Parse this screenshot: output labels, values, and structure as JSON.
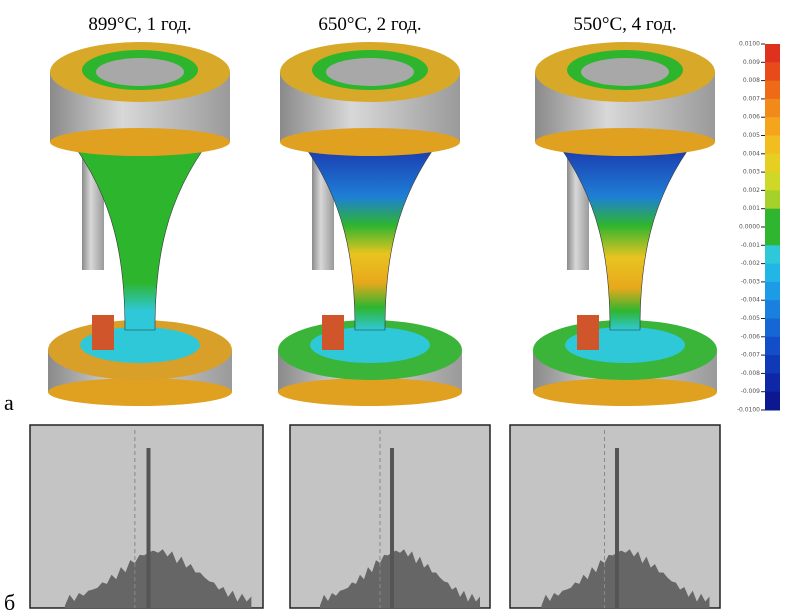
{
  "panel_labels": [
    "а",
    "б"
  ],
  "models": [
    {
      "title": "899°C, 1 год."
    },
    {
      "title": "650°C, 2 год."
    },
    {
      "title": "550°C, 4 год."
    }
  ],
  "colorbar": {
    "ticks": [
      {
        "value": 0.01,
        "label": "0.0100"
      },
      0.009,
      0.008,
      0.007,
      0.006,
      0.005,
      0.004,
      0.003,
      0.002,
      0.001,
      {
        "value": 0,
        "label": "0.0000"
      },
      -0.001,
      -0.002,
      -0.003,
      -0.004,
      -0.005,
      -0.006,
      -0.007,
      -0.008,
      -0.009,
      {
        "value": -0.01,
        "label": "-0.0100"
      }
    ],
    "colors": [
      "#e0301e",
      "#e84a1a",
      "#ee6a18",
      "#f28a1a",
      "#f5a51c",
      "#f2bd1f",
      "#e7cf22",
      "#cfd826",
      "#a6d12a",
      "#2fb52f",
      "#2fb52f",
      "#2fc8d8",
      "#22b6e6",
      "#1e9be6",
      "#1a80e0",
      "#1666d6",
      "#124ec8",
      "#1039b8",
      "#0e27a6",
      "#0b1890"
    ]
  }
}
